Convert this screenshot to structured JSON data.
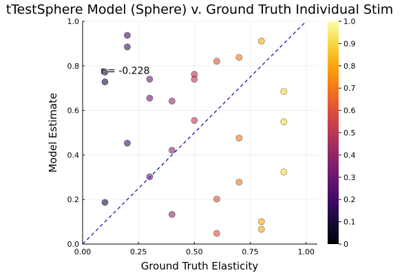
{
  "chart_data": {
    "type": "scatter",
    "title": "tTestSphere Model (Sphere) v. Ground Truth Individual Stim",
    "xlabel": "Ground Truth Elasticity",
    "ylabel": "Model Estimate",
    "xlim": [
      0,
      1.05
    ],
    "ylim": [
      0,
      1.0
    ],
    "xticks": [
      0,
      0.25,
      0.5,
      0.75,
      1.0
    ],
    "xtick_labels": [
      "0.00",
      "0.25",
      "0.50",
      "0.75",
      "1.00"
    ],
    "yticks": [
      0,
      0.2,
      0.4,
      0.6,
      0.8,
      1.0
    ],
    "ytick_labels": [
      "0.0",
      "0.2",
      "0.4",
      "0.6",
      "0.8",
      "1.0"
    ],
    "grid": true,
    "reference_line": {
      "style": "dashed",
      "color": "#0000cc",
      "from": [
        0,
        0
      ],
      "to": [
        1,
        1
      ]
    },
    "annotation": {
      "text": "r = -0.228",
      "x": 0.08,
      "y": 0.78
    },
    "colorbar": {
      "colormap": "inferno",
      "range": [
        0,
        1
      ],
      "ticks": [
        0,
        0.1,
        0.2,
        0.3,
        0.4,
        0.5,
        0.6,
        0.7,
        0.8,
        0.9,
        1.0
      ],
      "tick_labels": [
        "0",
        "0.1",
        "0.2",
        "0.3",
        "0.4",
        "0.5",
        "0.6",
        "0.7",
        "0.8",
        "0.9",
        "1.0"
      ]
    },
    "points": [
      {
        "x": 0.1,
        "y": 0.772
      },
      {
        "x": 0.1,
        "y": 0.728
      },
      {
        "x": 0.1,
        "y": 0.187
      },
      {
        "x": 0.2,
        "y": 0.937
      },
      {
        "x": 0.2,
        "y": 0.885
      },
      {
        "x": 0.2,
        "y": 0.453
      },
      {
        "x": 0.3,
        "y": 0.74
      },
      {
        "x": 0.3,
        "y": 0.655
      },
      {
        "x": 0.3,
        "y": 0.302
      },
      {
        "x": 0.4,
        "y": 0.642
      },
      {
        "x": 0.4,
        "y": 0.421
      },
      {
        "x": 0.4,
        "y": 0.133
      },
      {
        "x": 0.5,
        "y": 0.762
      },
      {
        "x": 0.5,
        "y": 0.74
      },
      {
        "x": 0.5,
        "y": 0.555
      },
      {
        "x": 0.6,
        "y": 0.821
      },
      {
        "x": 0.6,
        "y": 0.202
      },
      {
        "x": 0.6,
        "y": 0.048
      },
      {
        "x": 0.7,
        "y": 0.838
      },
      {
        "x": 0.7,
        "y": 0.476
      },
      {
        "x": 0.7,
        "y": 0.278
      },
      {
        "x": 0.8,
        "y": 0.911
      },
      {
        "x": 0.8,
        "y": 0.101
      },
      {
        "x": 0.8,
        "y": 0.066
      },
      {
        "x": 0.9,
        "y": 0.685
      },
      {
        "x": 0.9,
        "y": 0.549
      },
      {
        "x": 0.9,
        "y": 0.324
      }
    ]
  }
}
